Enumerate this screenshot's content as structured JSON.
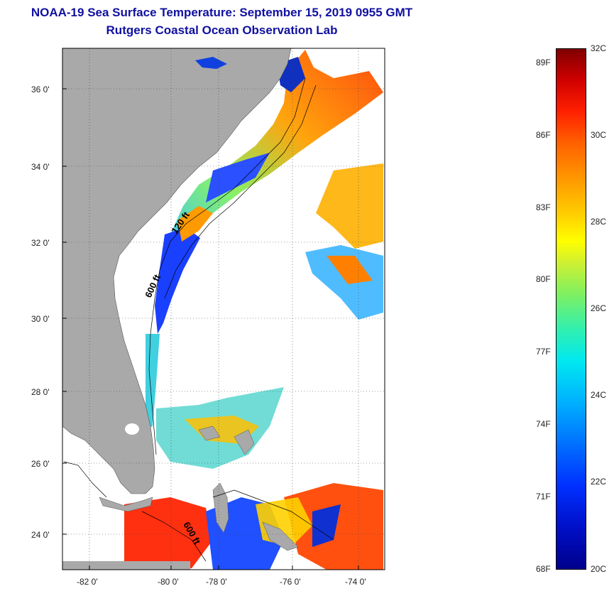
{
  "header": {
    "title": "NOAA-19 Sea Surface Temperature:  September 15, 2019 0955 GMT",
    "subtitle": "Rutgers Coastal Ocean Observation Lab"
  },
  "map": {
    "lat_labels": [
      "36 0'",
      "34 0'",
      "32 0'",
      "30 0'",
      "28 0'",
      "26 0'",
      "24 0'"
    ],
    "lon_labels": [
      "-82 0'",
      "-80 0'",
      "-78 0'",
      "-76 0'",
      "-74 0'"
    ],
    "contour_labels": [
      "120 ft",
      "600 ft",
      "600 ft"
    ],
    "colors": {
      "land": "#a9a9a9",
      "cloud": "#ffffff",
      "ocean_warm": "#ff3b10",
      "ocean_cool": "#1060ff",
      "lake": "#1040e0"
    }
  },
  "colorbar": {
    "fahrenheit_labels": [
      "89F",
      "86F",
      "83F",
      "80F",
      "77F",
      "74F",
      "71F",
      "68F"
    ],
    "celsius_labels": [
      "32C",
      "30C",
      "28C",
      "26C",
      "24C",
      "22C",
      "20C"
    ]
  }
}
